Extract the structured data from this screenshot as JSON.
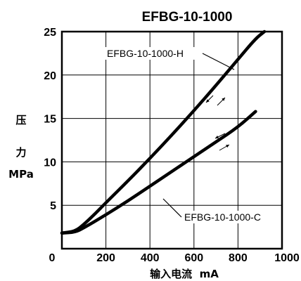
{
  "chart_data": {
    "type": "line",
    "title": "EFBG-10-1000",
    "ylabel": [
      "压",
      "力",
      "MPa"
    ],
    "xlabel": "输入电流  mA",
    "xlim": [
      0,
      1000
    ],
    "ylim": [
      0,
      25
    ],
    "x_ticks": [
      "0",
      "200",
      "400",
      "600",
      "800",
      "1000"
    ],
    "y_ticks": [
      "5",
      "10",
      "15",
      "20",
      "25"
    ],
    "grid": true,
    "series": [
      {
        "name": "EFBG-10-1000-H",
        "x": [
          0,
          60,
          100,
          150,
          200,
          300,
          400,
          500,
          600,
          700,
          800,
          880,
          920
        ],
        "y": [
          1.8,
          2.0,
          2.8,
          4.0,
          5.3,
          7.8,
          10.4,
          13.1,
          15.9,
          18.8,
          21.8,
          24.2,
          25.0
        ]
      },
      {
        "name": "EFBG-10-1000-C",
        "x": [
          0,
          60,
          100,
          200,
          300,
          400,
          500,
          600,
          700,
          800,
          880
        ],
        "y": [
          1.8,
          1.9,
          2.4,
          3.9,
          5.5,
          7.2,
          8.9,
          10.6,
          12.3,
          14.0,
          15.8
        ]
      }
    ]
  }
}
